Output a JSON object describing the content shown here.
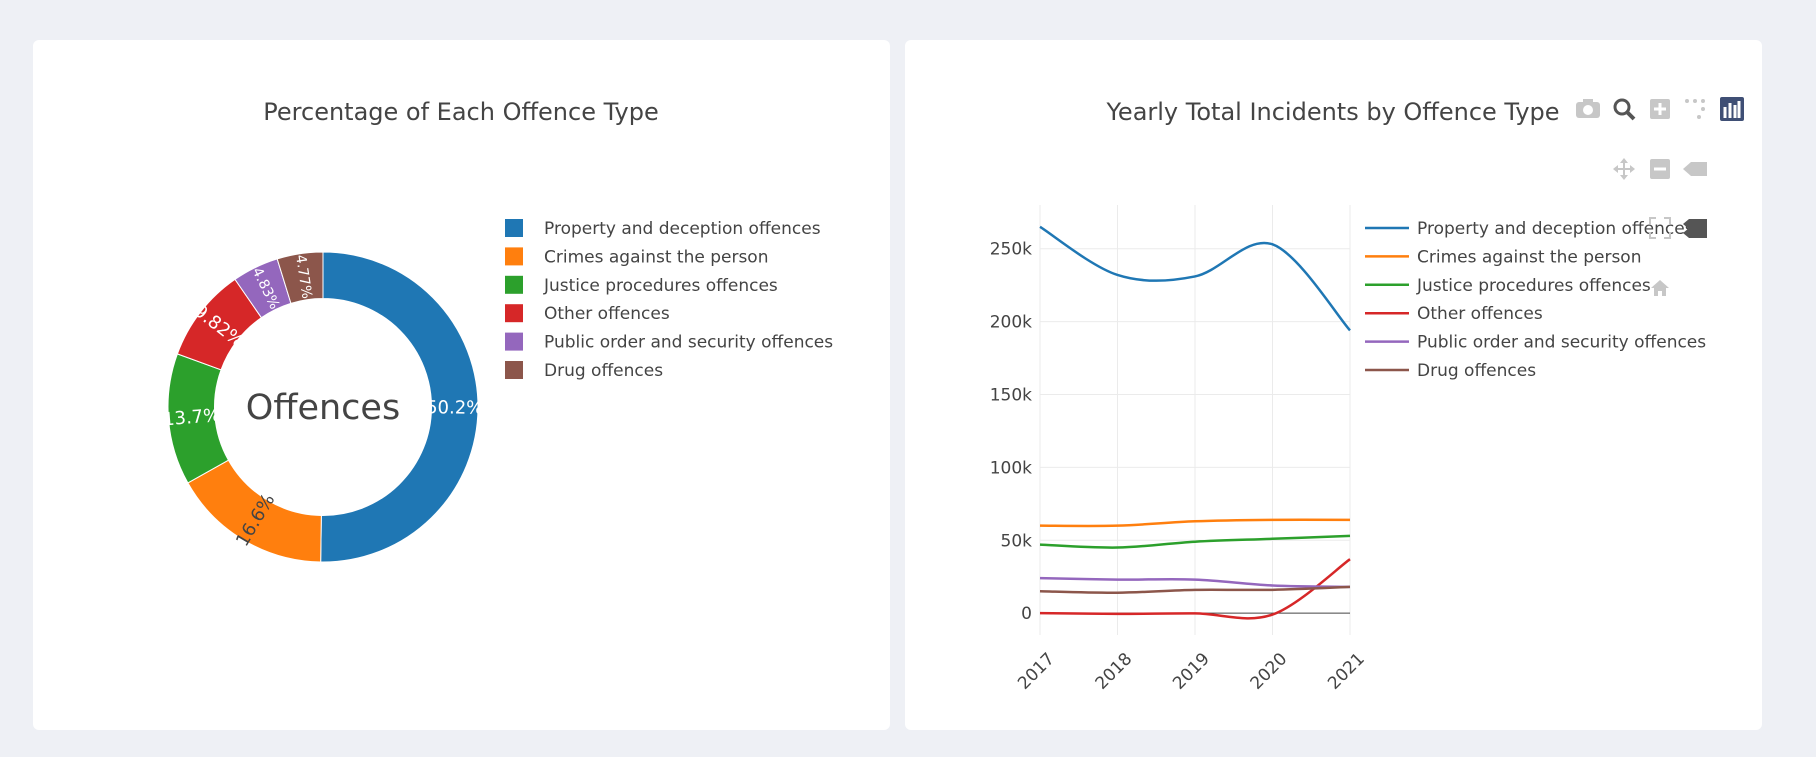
{
  "colors": [
    "#1f77b4",
    "#ff7f0e",
    "#2ca02c",
    "#d62728",
    "#9467bd",
    "#8c564b"
  ],
  "modebar": [
    {
      "name": "camera-icon",
      "label": "Download plot as a png"
    },
    {
      "name": "zoom-icon",
      "label": "Zoom"
    },
    {
      "name": "zoom-in-icon",
      "label": "Zoom in"
    },
    {
      "name": "lasso-icon",
      "label": "Lasso select"
    },
    {
      "name": "plotly-logo-icon",
      "label": "Produced with Plotly"
    },
    {
      "name": "pan-icon",
      "label": "Pan"
    },
    {
      "name": "zoom-out-icon",
      "label": "Zoom out"
    },
    {
      "name": "hover-closest-icon",
      "label": "Show closest data on hover"
    },
    {
      "name": "autoscale-icon",
      "label": "Autoscale"
    },
    {
      "name": "hover-compare-icon",
      "label": "Compare data on hover"
    },
    {
      "name": "reset-axes-icon",
      "label": "Reset axes"
    }
  ],
  "chart_data": [
    {
      "type": "pie",
      "hole": 0.7,
      "title": "Percentage of Each Offence Type",
      "center_label": "Offences",
      "legend_position": "right",
      "labels": [
        "Property and deception offences",
        "Crimes against the person",
        "Justice procedures offences",
        "Other offences",
        "Public order and security offences",
        "Drug offences"
      ],
      "values": [
        50.2,
        16.6,
        13.7,
        9.82,
        4.83,
        4.77
      ],
      "value_labels": [
        "50.2%",
        "16.6%",
        "13.7%",
        "9.82%",
        "4.83%",
        "4.77%"
      ]
    },
    {
      "type": "line",
      "smoothing": "spline",
      "title": "Yearly Total Incidents by Offence Type",
      "legend_position": "right",
      "x": [
        2017,
        2018,
        2019,
        2020,
        2021
      ],
      "x_tick_labels": [
        "2017",
        "2018",
        "2019",
        "2020",
        "2021"
      ],
      "ylim": [
        -15000,
        280000
      ],
      "y_ticks": [
        0,
        50000,
        100000,
        150000,
        200000,
        250000
      ],
      "y_tick_labels": [
        "0",
        "50k",
        "100k",
        "150k",
        "200k",
        "250k"
      ],
      "grid": true,
      "series": [
        {
          "name": "Property and deception offences",
          "values": [
            265000,
            232000,
            231000,
            253000,
            194000
          ]
        },
        {
          "name": "Crimes against the person",
          "values": [
            60000,
            60000,
            63000,
            64000,
            64000
          ]
        },
        {
          "name": "Justice procedures offences",
          "values": [
            47000,
            45000,
            49000,
            51000,
            53000
          ]
        },
        {
          "name": "Other offences",
          "values": [
            0,
            -500,
            -200,
            -1000,
            37000
          ]
        },
        {
          "name": "Public order and security offences",
          "values": [
            24000,
            23000,
            23000,
            19000,
            18000
          ]
        },
        {
          "name": "Drug offences",
          "values": [
            15000,
            14000,
            16000,
            16000,
            18000
          ]
        }
      ]
    }
  ]
}
